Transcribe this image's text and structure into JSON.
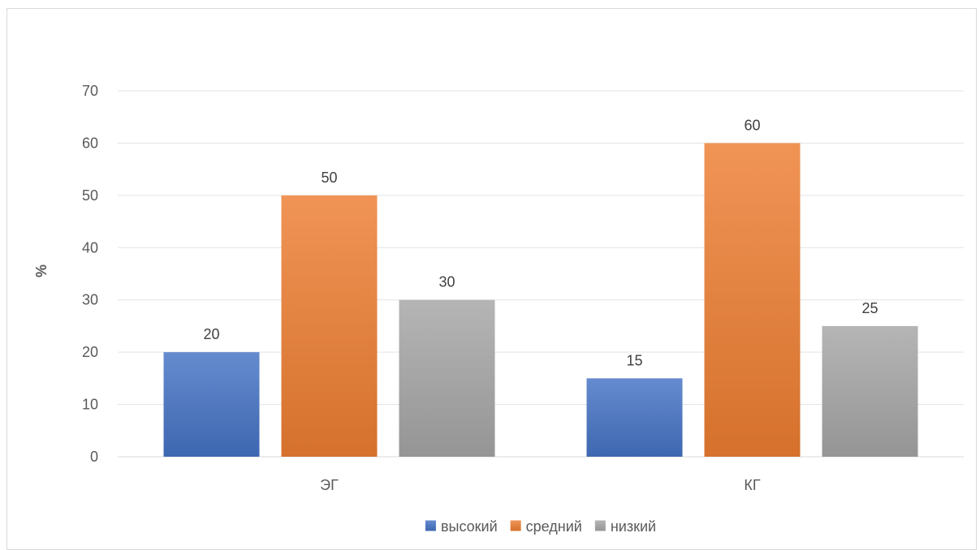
{
  "chart_data": {
    "type": "bar",
    "categories": [
      "ЭГ",
      "КГ"
    ],
    "series": [
      {
        "name": "высокий",
        "values": [
          20,
          15
        ],
        "color": "#4472c4"
      },
      {
        "name": "средний",
        "values": [
          50,
          60
        ],
        "color": "#ed7d31"
      },
      {
        "name": "низкий",
        "values": [
          30,
          25
        ],
        "color": "#a5a5a5"
      }
    ],
    "title": "",
    "xlabel": "",
    "ylabel": "%",
    "ylim": [
      0,
      70
    ],
    "yticks": [
      0,
      10,
      20,
      30,
      40,
      50,
      60,
      70
    ],
    "grid": true,
    "legend": "bottom"
  }
}
